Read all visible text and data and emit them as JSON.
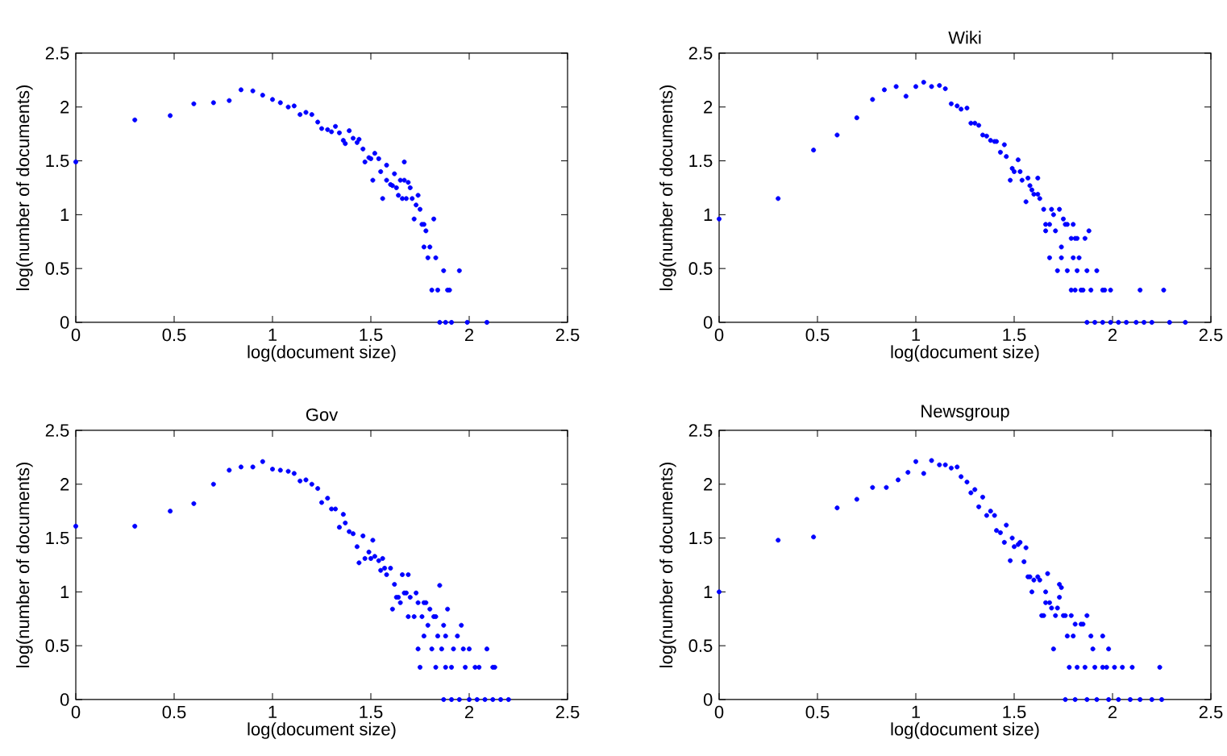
{
  "chart_data": [
    {
      "type": "scatter",
      "xlabel": "log(document size)",
      "ylabel": "log(number of documents)",
      "color": "#0000ff",
      "marker": "circle",
      "xlim": [
        0,
        2.5
      ],
      "ylim": [
        0,
        2.5
      ],
      "xticks": [
        0,
        0.5,
        1,
        1.5,
        2,
        2.5
      ],
      "yticks": [
        0,
        0.5,
        1,
        1.5,
        2,
        2.5
      ],
      "x": [
        0,
        0.3,
        0.48,
        0.6,
        0.7,
        0.78,
        0.84,
        0.9,
        0.95,
        1.0,
        1.04,
        1.08,
        1.11,
        1.14,
        1.17,
        1.2,
        1.23,
        1.25,
        1.28,
        1.3,
        1.32,
        1.34,
        1.36,
        1.37,
        1.39,
        1.41,
        1.43,
        1.44,
        1.46,
        1.47,
        1.49,
        1.5,
        1.51,
        1.52,
        1.54,
        1.55,
        1.56,
        1.58,
        1.58,
        1.6,
        1.61,
        1.62,
        1.63,
        1.64,
        1.65,
        1.66,
        1.67,
        1.67,
        1.68,
        1.69,
        1.7,
        1.71,
        1.72,
        1.73,
        1.74,
        1.75,
        1.76,
        1.77,
        1.78,
        1.77,
        1.79,
        1.8,
        1.82,
        1.83,
        1.81,
        1.84,
        1.87,
        1.89,
        1.9,
        1.95,
        1.85,
        1.88,
        1.91,
        1.99,
        2.09
      ],
      "values": [
        1.49,
        1.88,
        1.92,
        2.03,
        2.04,
        2.06,
        2.16,
        2.15,
        2.11,
        2.07,
        2.04,
        2.0,
        2.01,
        1.93,
        1.95,
        1.93,
        1.86,
        1.8,
        1.79,
        1.77,
        1.82,
        1.76,
        1.69,
        1.66,
        1.78,
        1.71,
        1.67,
        1.7,
        1.61,
        1.49,
        1.53,
        1.52,
        1.32,
        1.57,
        1.52,
        1.4,
        1.15,
        1.32,
        1.46,
        1.28,
        1.27,
        1.38,
        1.25,
        1.18,
        1.32,
        1.15,
        1.49,
        1.32,
        1.15,
        1.3,
        1.25,
        1.15,
        0.96,
        1.09,
        1.18,
        1.05,
        0.91,
        0.91,
        0.85,
        0.7,
        0.6,
        0.7,
        0.96,
        0.6,
        0.3,
        0.3,
        0.48,
        0.3,
        0.3,
        0.48,
        0,
        0,
        0,
        0,
        0
      ]
    },
    {
      "type": "scatter",
      "title": "Wiki",
      "xlabel": "log(document size)",
      "ylabel": "log(number of documents)",
      "color": "#0000ff",
      "marker": "circle",
      "xlim": [
        0,
        2.5
      ],
      "ylim": [
        0,
        2.5
      ],
      "xticks": [
        0,
        0.5,
        1,
        1.5,
        2,
        2.5
      ],
      "yticks": [
        0,
        0.5,
        1,
        1.5,
        2,
        2.5
      ],
      "x": [
        0,
        0.3,
        0.48,
        0.6,
        0.7,
        0.78,
        0.84,
        0.9,
        0.95,
        1.0,
        1.04,
        1.08,
        1.12,
        1.15,
        1.18,
        1.21,
        1.23,
        1.26,
        1.28,
        1.3,
        1.32,
        1.34,
        1.36,
        1.38,
        1.4,
        1.41,
        1.43,
        1.45,
        1.46,
        1.48,
        1.49,
        1.5,
        1.52,
        1.53,
        1.54,
        1.56,
        1.57,
        1.58,
        1.59,
        1.6,
        1.62,
        1.62,
        1.63,
        1.65,
        1.66,
        1.66,
        1.68,
        1.68,
        1.69,
        1.7,
        1.71,
        1.72,
        1.73,
        1.74,
        1.74,
        1.75,
        1.76,
        1.77,
        1.77,
        1.79,
        1.79,
        1.8,
        1.8,
        1.81,
        1.81,
        1.82,
        1.82,
        1.83,
        1.84,
        1.85,
        1.86,
        1.87,
        1.88,
        1.89,
        1.92,
        1.95,
        1.96,
        1.99,
        2.14,
        2.26,
        1.87,
        1.91,
        1.95,
        1.99,
        2.03,
        2.07,
        2.12,
        2.16,
        2.2,
        2.29,
        2.37
      ],
      "values": [
        0.96,
        1.15,
        1.6,
        1.74,
        1.9,
        2.07,
        2.16,
        2.19,
        2.1,
        2.19,
        2.23,
        2.19,
        2.2,
        2.17,
        2.03,
        2.01,
        1.98,
        1.99,
        1.85,
        1.85,
        1.83,
        1.74,
        1.73,
        1.69,
        1.68,
        1.68,
        1.58,
        1.65,
        1.54,
        1.32,
        1.43,
        1.4,
        1.51,
        1.4,
        1.32,
        1.12,
        1.34,
        1.27,
        1.23,
        1.19,
        1.19,
        1.34,
        1.15,
        1.05,
        0.85,
        0.91,
        0.91,
        0.6,
        1.05,
        1.0,
        0.85,
        0.48,
        1.05,
        0.6,
        0.7,
        0.96,
        0.91,
        0.91,
        0.48,
        0.78,
        0.3,
        0.91,
        0.6,
        0.78,
        0.3,
        0.78,
        0.48,
        0.6,
        0.3,
        0.3,
        0.78,
        0.48,
        0.85,
        0.3,
        0.48,
        0.3,
        0.3,
        0.3,
        0.3,
        0.3,
        0,
        0,
        0,
        0,
        0,
        0,
        0,
        0,
        0,
        0,
        0
      ]
    },
    {
      "type": "scatter",
      "title": "Gov",
      "xlabel": "log(document size)",
      "ylabel": "log(number of documents)",
      "color": "#0000ff",
      "marker": "circle",
      "xlim": [
        0,
        2.5
      ],
      "ylim": [
        0,
        2.5
      ],
      "xticks": [
        0,
        0.5,
        1,
        1.5,
        2,
        2.5
      ],
      "yticks": [
        0,
        0.5,
        1,
        1.5,
        2,
        2.5
      ],
      "x": [
        0,
        0.3,
        0.48,
        0.6,
        0.7,
        0.78,
        0.84,
        0.9,
        0.95,
        1.0,
        1.04,
        1.08,
        1.11,
        1.14,
        1.17,
        1.2,
        1.23,
        1.25,
        1.28,
        1.3,
        1.32,
        1.34,
        1.36,
        1.37,
        1.39,
        1.41,
        1.43,
        1.44,
        1.46,
        1.47,
        1.49,
        1.5,
        1.51,
        1.52,
        1.54,
        1.55,
        1.56,
        1.57,
        1.58,
        1.6,
        1.61,
        1.62,
        1.63,
        1.64,
        1.65,
        1.66,
        1.67,
        1.68,
        1.69,
        1.69,
        1.7,
        1.72,
        1.73,
        1.74,
        1.74,
        1.75,
        1.76,
        1.77,
        1.77,
        1.78,
        1.79,
        1.8,
        1.81,
        1.82,
        1.83,
        1.83,
        1.84,
        1.85,
        1.86,
        1.87,
        1.88,
        1.88,
        1.89,
        1.91,
        1.92,
        1.94,
        1.96,
        1.97,
        1.98,
        2.0,
        2.03,
        2.05,
        2.09,
        2.12,
        2.13,
        1.87,
        1.91,
        1.95,
        2.0,
        2.04,
        2.08,
        2.12,
        2.16,
        2.2
      ],
      "values": [
        1.61,
        1.61,
        1.75,
        1.82,
        2.0,
        2.13,
        2.16,
        2.16,
        2.21,
        2.14,
        2.13,
        2.12,
        2.1,
        2.03,
        2.04,
        2.0,
        1.96,
        1.83,
        1.87,
        1.77,
        1.77,
        1.6,
        1.72,
        1.64,
        1.56,
        1.54,
        1.42,
        1.27,
        1.52,
        1.31,
        1.37,
        1.31,
        1.48,
        1.33,
        1.29,
        1.2,
        1.31,
        1.22,
        1.16,
        1.22,
        0.84,
        1.07,
        0.95,
        0.95,
        0.9,
        1.16,
        0.99,
        0.99,
        1.16,
        0.77,
        0.95,
        0.77,
        0.99,
        0.47,
        0.9,
        0.3,
        0.77,
        0.9,
        0.59,
        0.9,
        0.69,
        0.84,
        0.47,
        0.77,
        0.3,
        0.77,
        0.59,
        1.06,
        0.47,
        0.69,
        0.59,
        0.3,
        0.84,
        0.3,
        0.47,
        0.59,
        0.69,
        0.47,
        0.3,
        0.47,
        0.3,
        0.3,
        0.47,
        0.3,
        0.3,
        0,
        0,
        0,
        0,
        0,
        0,
        0,
        0,
        0
      ]
    },
    {
      "type": "scatter",
      "title": "Newsgroup",
      "xlabel": "log(document size)",
      "ylabel": "log(number of documents)",
      "color": "#0000ff",
      "marker": "circle",
      "xlim": [
        0,
        2.5
      ],
      "ylim": [
        0,
        2.5
      ],
      "xticks": [
        0,
        0.5,
        1,
        1.5,
        2,
        2.5
      ],
      "yticks": [
        0,
        0.5,
        1,
        1.5,
        2,
        2.5
      ],
      "x": [
        0,
        0.3,
        0.48,
        0.6,
        0.7,
        0.78,
        0.85,
        0.91,
        0.96,
        1.0,
        1.04,
        1.08,
        1.12,
        1.15,
        1.18,
        1.21,
        1.23,
        1.26,
        1.28,
        1.3,
        1.32,
        1.34,
        1.36,
        1.38,
        1.4,
        1.41,
        1.43,
        1.45,
        1.46,
        1.48,
        1.49,
        1.5,
        1.52,
        1.53,
        1.55,
        1.56,
        1.57,
        1.58,
        1.59,
        1.6,
        1.62,
        1.63,
        1.64,
        1.65,
        1.66,
        1.66,
        1.67,
        1.68,
        1.69,
        1.7,
        1.71,
        1.72,
        1.73,
        1.73,
        1.74,
        1.75,
        1.76,
        1.77,
        1.78,
        1.79,
        1.8,
        1.81,
        1.82,
        1.84,
        1.85,
        1.86,
        1.87,
        1.89,
        1.9,
        1.91,
        1.95,
        1.95,
        1.97,
        1.98,
        2.01,
        2.05,
        2.1,
        2.24,
        1.76,
        1.81,
        1.87,
        1.92,
        1.98,
        2.03,
        2.09,
        2.14,
        2.2,
        2.25
      ],
      "values": [
        1.0,
        1.48,
        1.51,
        1.78,
        1.86,
        1.97,
        1.97,
        2.04,
        2.11,
        2.21,
        2.1,
        2.22,
        2.18,
        2.18,
        2.15,
        2.16,
        2.07,
        2.02,
        1.92,
        1.95,
        1.79,
        1.88,
        1.71,
        1.75,
        1.71,
        1.57,
        1.55,
        1.46,
        1.62,
        1.29,
        1.5,
        1.42,
        1.44,
        1.46,
        1.28,
        1.41,
        1.14,
        1.14,
        1.0,
        1.11,
        1.14,
        1.11,
        0.78,
        0.78,
        1.0,
        0.9,
        1.17,
        0.9,
        0.85,
        0.47,
        0.78,
        0.85,
        1.07,
        0.95,
        1.04,
        0.78,
        0.78,
        0.59,
        0.3,
        0.78,
        0.59,
        0.7,
        0.3,
        0.7,
        0.7,
        0.3,
        0.78,
        0.59,
        0.47,
        0.3,
        0.59,
        0.3,
        0.3,
        0.47,
        0.3,
        0.3,
        0.3,
        0.3,
        0,
        0,
        0,
        0,
        0,
        0,
        0,
        0,
        0,
        0
      ]
    }
  ]
}
